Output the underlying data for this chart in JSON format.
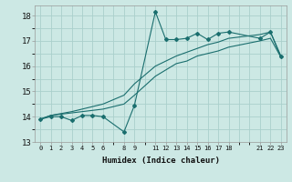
{
  "xlabel": "Humidex (Indice chaleur)",
  "background_color": "#cce8e4",
  "grid_color": "#aad0cc",
  "line_color": "#1a6e6e",
  "ylim": [
    13,
    18.4
  ],
  "xlim": [
    -0.5,
    23.5
  ],
  "yticks": [
    13,
    14,
    15,
    16,
    17,
    18
  ],
  "xticks": [
    0,
    1,
    2,
    3,
    4,
    5,
    6,
    8,
    9,
    11,
    12,
    13,
    14,
    15,
    16,
    17,
    18,
    21,
    22,
    23
  ],
  "line1_x": [
    0,
    1,
    2,
    3,
    4,
    5,
    6,
    8,
    9,
    11,
    12,
    13,
    14,
    15,
    16,
    17,
    18,
    21,
    22,
    23
  ],
  "line1_y": [
    13.9,
    14.0,
    14.0,
    13.85,
    14.05,
    14.05,
    14.0,
    13.4,
    14.45,
    18.15,
    17.05,
    17.05,
    17.1,
    17.3,
    17.05,
    17.3,
    17.35,
    17.1,
    17.35,
    16.4
  ],
  "line2_x": [
    0,
    1,
    3,
    4,
    5,
    6,
    8,
    9,
    11,
    12,
    13,
    14,
    15,
    16,
    17,
    18,
    21,
    22,
    23
  ],
  "line2_y": [
    13.9,
    14.05,
    14.15,
    14.2,
    14.25,
    14.3,
    14.5,
    14.85,
    15.6,
    15.85,
    16.1,
    16.2,
    16.4,
    16.5,
    16.6,
    16.75,
    17.0,
    17.1,
    16.35
  ],
  "line3_x": [
    0,
    1,
    3,
    4,
    5,
    6,
    8,
    9,
    11,
    12,
    13,
    14,
    15,
    16,
    17,
    18,
    21,
    22,
    23
  ],
  "line3_y": [
    13.9,
    14.05,
    14.2,
    14.3,
    14.4,
    14.5,
    14.85,
    15.3,
    16.0,
    16.2,
    16.4,
    16.55,
    16.7,
    16.85,
    16.95,
    17.1,
    17.25,
    17.35,
    16.35
  ]
}
